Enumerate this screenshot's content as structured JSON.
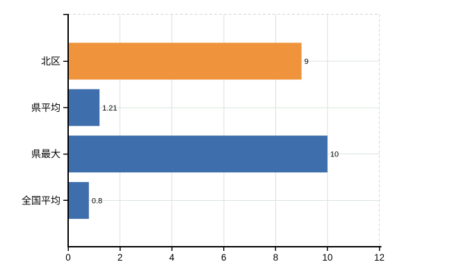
{
  "chart_data": {
    "type": "bar",
    "orientation": "horizontal",
    "categories": [
      "北区",
      "県平均",
      "県最大",
      "全国平均"
    ],
    "values": [
      9,
      1.21,
      10,
      0.8
    ],
    "value_labels": [
      "9",
      "1.21",
      "10",
      "0.8"
    ],
    "bar_colors": [
      "#EF943C",
      "#3E6FAC",
      "#3E6FAC",
      "#3E6FAC"
    ],
    "xlim": [
      0,
      12
    ],
    "xticks": [
      0,
      2,
      4,
      6,
      8,
      10,
      12
    ],
    "xtick_labels": [
      "0",
      "2",
      "4",
      "6",
      "8",
      "10",
      "12"
    ],
    "grid": true,
    "legend": false,
    "title": ""
  },
  "colors": {
    "bar_orange": "#EF943C",
    "bar_blue": "#3E6FAC",
    "gridline_vertical": "#DEDEDE",
    "gridline_horizontal": "#DAE4DA",
    "plot_border_dashed": "#D5D5D5",
    "axis": "#000000",
    "text": "#000000",
    "background": "#FFFFFF"
  }
}
